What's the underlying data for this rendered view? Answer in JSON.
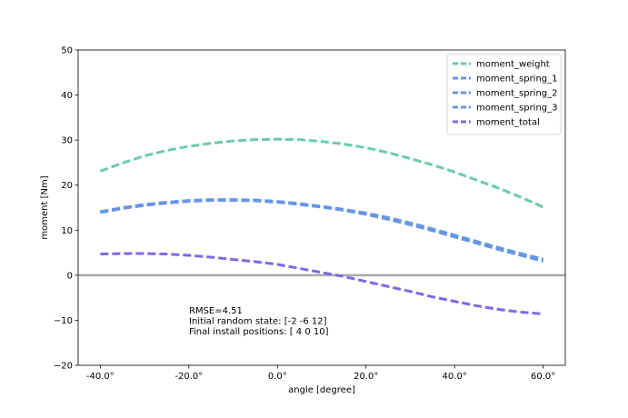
{
  "chart_data": {
    "type": "line",
    "title": "",
    "xlabel": "angle [degree]",
    "ylabel": "moment [Nm]",
    "xlim": [
      -45,
      65
    ],
    "ylim": [
      -20,
      50
    ],
    "x_ticks": [
      -40,
      -20,
      0,
      20,
      40,
      60
    ],
    "x_tick_labels": [
      "-40.0°",
      "-20.0°",
      "0.0°",
      "20.0°",
      "40.0°",
      "60.0°"
    ],
    "y_ticks": [
      -20,
      -10,
      0,
      10,
      20,
      30,
      40,
      50
    ],
    "y_tick_labels": [
      "−20",
      "−10",
      "0",
      "10",
      "20",
      "30",
      "40",
      "50"
    ],
    "grid": false,
    "legend_position": "top-right",
    "x": [
      -40,
      -35,
      -30,
      -25,
      -20,
      -15,
      -10,
      -5,
      0,
      5,
      10,
      15,
      20,
      25,
      30,
      35,
      40,
      45,
      50,
      55,
      60
    ],
    "series": [
      {
        "name": "moment_weight",
        "color": "#66cdaa",
        "values": [
          23.1,
          24.9,
          26.5,
          27.7,
          28.6,
          29.3,
          29.8,
          30.1,
          30.2,
          30.1,
          29.7,
          29.1,
          28.3,
          27.2,
          25.9,
          24.5,
          22.9,
          21.1,
          19.3,
          17.3,
          15.1
        ]
      },
      {
        "name": "moment_spring_1",
        "color": "#6495ed",
        "values": [
          14.0,
          14.9,
          15.6,
          16.1,
          16.5,
          16.7,
          16.7,
          16.6,
          16.3,
          15.8,
          15.2,
          14.5,
          13.7,
          12.6,
          11.4,
          10.1,
          8.7,
          7.3,
          5.9,
          4.6,
          3.4
        ]
      },
      {
        "name": "moment_spring_2",
        "color": "#6495ed",
        "values": [
          13.9,
          14.8,
          15.5,
          16.0,
          16.4,
          16.6,
          16.6,
          16.5,
          16.2,
          15.7,
          15.1,
          14.4,
          13.5,
          12.4,
          11.2,
          9.9,
          8.5,
          7.1,
          5.7,
          4.4,
          3.1
        ]
      },
      {
        "name": "moment_spring_3",
        "color": "#6495ed",
        "values": [
          14.1,
          15.0,
          15.7,
          16.2,
          16.6,
          16.8,
          16.8,
          16.7,
          16.4,
          15.9,
          15.3,
          14.6,
          13.8,
          12.8,
          11.6,
          10.3,
          8.9,
          7.5,
          6.1,
          4.8,
          3.6
        ]
      },
      {
        "name": "moment_total",
        "color": "#7b68ee",
        "values": [
          4.7,
          4.8,
          4.8,
          4.7,
          4.4,
          4.0,
          3.5,
          3.0,
          2.4,
          1.5,
          0.6,
          -0.3,
          -1.4,
          -2.5,
          -3.6,
          -4.8,
          -5.8,
          -6.8,
          -7.6,
          -8.2,
          -8.6
        ]
      }
    ],
    "reference_line": {
      "y": 0,
      "color": "#a9a9a9"
    },
    "annotations": [
      "RMSE=4.51",
      "Initial random state: [-2 -6 12]",
      "Final install positions: [ 4  0 10]"
    ]
  }
}
